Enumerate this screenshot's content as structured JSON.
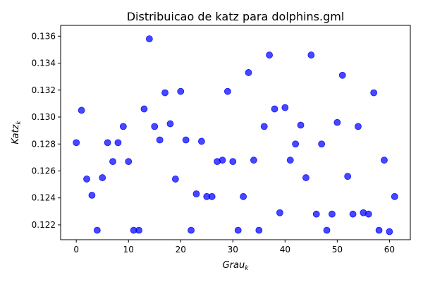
{
  "chart_data": {
    "type": "scatter",
    "title": "Distribuicao de katz para dolphins.gml",
    "xlabel_main": "Grau",
    "xlabel_sub": "k",
    "ylabel_main": "Katz",
    "ylabel_sub": "k",
    "xlim": [
      -3,
      64
    ],
    "ylim": [
      0.1209,
      0.1368
    ],
    "xticks": [
      0,
      10,
      20,
      30,
      40,
      50,
      60
    ],
    "yticks": [
      0.122,
      0.124,
      0.126,
      0.128,
      0.13,
      0.132,
      0.134,
      0.136
    ],
    "ytick_labels": [
      "0.122",
      "0.124",
      "0.126",
      "0.128",
      "0.130",
      "0.132",
      "0.134",
      "0.136"
    ],
    "marker_color": "#0000ff",
    "grid": false,
    "x": [
      0,
      1,
      2,
      3,
      4,
      5,
      6,
      7,
      8,
      9,
      10,
      11,
      12,
      13,
      14,
      15,
      16,
      17,
      18,
      19,
      20,
      21,
      22,
      23,
      24,
      25,
      26,
      27,
      28,
      29,
      30,
      31,
      32,
      33,
      34,
      35,
      36,
      37,
      38,
      39,
      40,
      41,
      42,
      43,
      44,
      45,
      46,
      47,
      48,
      49,
      50,
      51,
      52,
      53,
      54,
      55,
      56,
      57,
      58,
      59,
      60,
      61
    ],
    "y": [
      0.1281,
      0.1305,
      0.1254,
      0.1242,
      0.1216,
      0.1255,
      0.1281,
      0.1267,
      0.1281,
      0.1293,
      0.1267,
      0.1216,
      0.1216,
      0.1306,
      0.1358,
      0.1293,
      0.1283,
      0.1318,
      0.1295,
      0.1254,
      0.1319,
      0.1283,
      0.1216,
      0.1243,
      0.1282,
      0.1241,
      0.1241,
      0.1267,
      0.1268,
      0.1319,
      0.1267,
      0.1216,
      0.1241,
      0.1333,
      0.1268,
      0.1216,
      0.1293,
      0.1346,
      0.1306,
      0.1229,
      0.1307,
      0.1268,
      0.128,
      0.1294,
      0.1255,
      0.1346,
      0.1228,
      0.128,
      0.1216,
      0.1228,
      0.1296,
      0.1331,
      0.1256,
      0.1228,
      0.1293,
      0.1229,
      0.1228,
      0.1318,
      0.1216,
      0.1268,
      0.1215,
      0.1241
    ]
  }
}
